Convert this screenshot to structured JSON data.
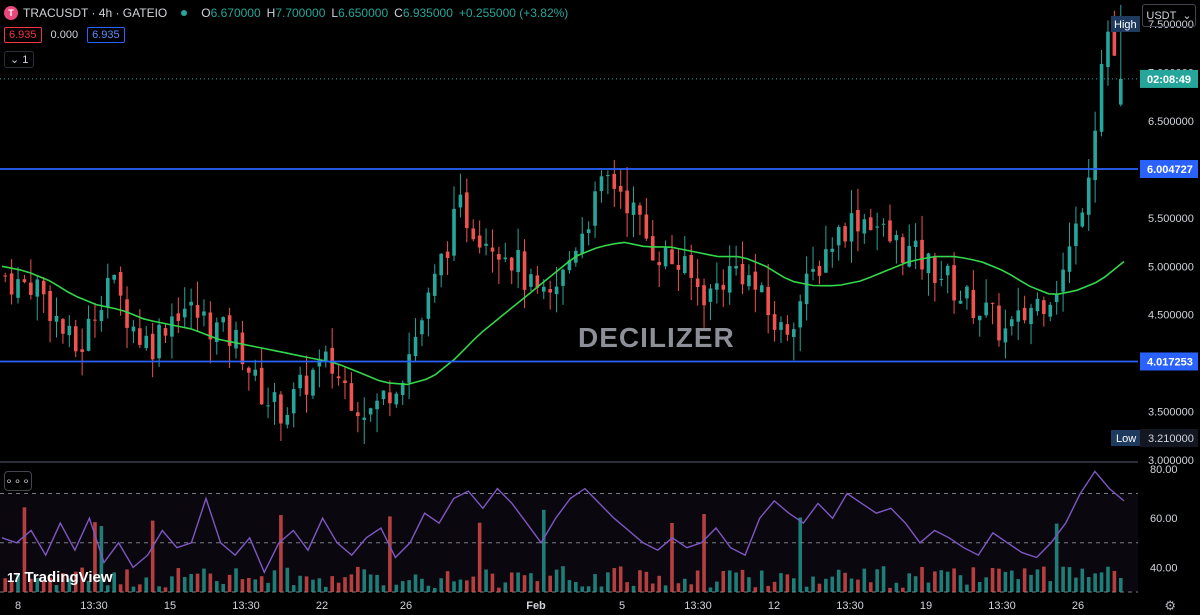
{
  "header": {
    "symbol": "TRACUSDT · 4h · GATEIO",
    "open_label": "O",
    "open": "6.670000",
    "high_label": "H",
    "high": "7.700000",
    "low_label": "L",
    "low": "6.650000",
    "close_label": "C",
    "close": "6.935000",
    "change": "+0.255000 (+3.82%)"
  },
  "quote": {
    "sell": "6.935",
    "spread": "0.000",
    "buy": "6.935"
  },
  "collapse_label": "1",
  "currency": "USDT",
  "indicator_menu": "∘∘∘",
  "watermark": "DECILIZER",
  "brand": "TradingView",
  "brand_mark": "17",
  "colors": {
    "up": "#26a69a",
    "down": "#ef5350",
    "ma": "#32d74b",
    "rsi": "#7e57c2",
    "level": "#2962ff"
  },
  "price_axis": {
    "ticks": [
      "7.500000",
      "7.000000",
      "6.500000",
      "6.000000",
      "5.500000",
      "5.000000",
      "4.500000",
      "4.000000",
      "3.500000",
      "3.000000"
    ],
    "level_hi": "6.004727",
    "level_lo": "4.017253",
    "countdown": "02:08:49",
    "high_tag": "High",
    "low_tag": "Low",
    "low_value": "3.210000"
  },
  "rsi_axis": {
    "ticks": [
      "80.00",
      "60.00",
      "40.00"
    ]
  },
  "time_axis": {
    "labels": [
      "8",
      "13:30",
      "15",
      "13:30",
      "22",
      "26",
      "Feb",
      "5",
      "13:30",
      "12",
      "13:30",
      "19",
      "13:30",
      "26"
    ]
  },
  "chart_data": [
    {
      "type": "candlestick",
      "symbol": "TRACUSDT",
      "interval": "4h",
      "exchange": "GATEIO",
      "ylim": [
        3.0,
        7.75
      ],
      "key_levels": [
        6.004727,
        4.017253
      ],
      "current_price": 6.935,
      "session_high": 7.7,
      "session_low": 3.21,
      "time_labels": [
        "8",
        "13:30",
        "15",
        "13:30",
        "22",
        "26",
        "Feb",
        "5",
        "13:30",
        "12",
        "13:30",
        "19",
        "13:30",
        "26"
      ],
      "close_path_approx": [
        4.9,
        4.8,
        4.85,
        4.6,
        4.3,
        4.1,
        4.5,
        4.9,
        4.6,
        4.3,
        4.2,
        4.45,
        4.6,
        4.5,
        4.4,
        4.3,
        4.2,
        3.8,
        3.6,
        3.5,
        3.7,
        3.9,
        4.0,
        3.8,
        3.6,
        3.5,
        3.7,
        3.9,
        4.3,
        4.7,
        5.2,
        5.6,
        5.4,
        5.3,
        5.2,
        5.0,
        4.7,
        4.6,
        4.9,
        5.3,
        5.6,
        5.9,
        5.8,
        5.5,
        5.2,
        5.1,
        5.0,
        4.8,
        4.7,
        4.9,
        5.0,
        4.8,
        4.5,
        4.3,
        4.6,
        4.9,
        5.2,
        5.4,
        5.5,
        5.5,
        5.3,
        5.2,
        5.1,
        5.0,
        4.9,
        4.7,
        4.6,
        4.5,
        4.3,
        4.4,
        4.6,
        4.7,
        4.9,
        5.4,
        6.2,
        7.5,
        6.935
      ],
      "ma_path_approx": [
        5.0,
        4.95,
        4.85,
        4.7,
        4.6,
        4.55,
        4.45,
        4.4,
        4.35,
        4.25,
        4.2,
        4.15,
        4.1,
        4.05,
        4.0,
        3.9,
        3.8,
        3.78,
        3.85,
        4.05,
        4.3,
        4.5,
        4.7,
        4.9,
        5.1,
        5.2,
        5.25,
        5.2,
        5.2,
        5.15,
        5.1,
        5.1,
        5.0,
        4.85,
        4.8,
        4.8,
        4.85,
        4.95,
        5.05,
        5.1,
        5.1,
        5.05,
        4.95,
        4.8,
        4.7,
        4.75,
        4.85,
        5.05
      ]
    },
    {
      "type": "line",
      "name": "RSI",
      "ylim": [
        30,
        82
      ],
      "levels": [
        70,
        50,
        30
      ],
      "values_approx": [
        52,
        50,
        55,
        45,
        58,
        47,
        60,
        42,
        50,
        40,
        45,
        55,
        48,
        50,
        68,
        50,
        45,
        52,
        38,
        50,
        55,
        47,
        60,
        50,
        45,
        52,
        56,
        44,
        50,
        62,
        58,
        68,
        71,
        64,
        72,
        66,
        58,
        50,
        60,
        68,
        72,
        66,
        60,
        55,
        50,
        47,
        52,
        48,
        50,
        56,
        48,
        45,
        60,
        67,
        62,
        58,
        66,
        60,
        70,
        66,
        62,
        64,
        58,
        50,
        55,
        52,
        48,
        45,
        54,
        50,
        46,
        44,
        50,
        58,
        70,
        79,
        72,
        67
      ]
    }
  ]
}
